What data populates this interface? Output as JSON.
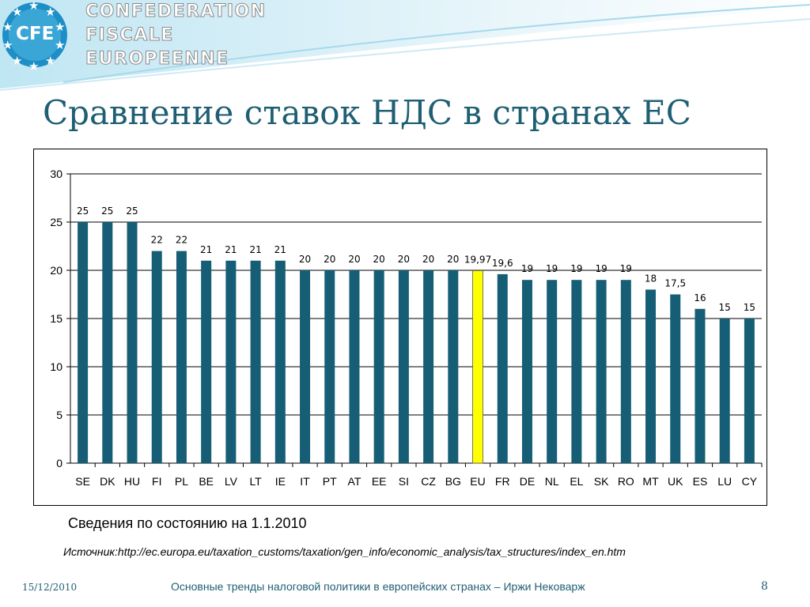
{
  "header": {
    "logo_text": "CFE",
    "org_line1": "CONFEDERATION",
    "org_line2": "FISCALE",
    "org_line3": "EUROPEENNE"
  },
  "slide_title": "Сравнение ставок НДС в странах ЕС",
  "note": "Сведения по состоянию на 1.1.2010",
  "source": "Источник:http://ec.europa.eu/taxation_customs/taxation/gen_info/economic_analysis/tax_structures/index_en.htm",
  "footer": {
    "date": "15/12/2010",
    "text": "Основные тренды налоговой политики в европейских странах – Иржи Нековарж",
    "page": "8"
  },
  "colors": {
    "bar": "#155e75",
    "highlight_bar": "#ffff00",
    "title": "#1f5f73",
    "logo_blue": "#1e8fc6"
  },
  "chart_data": {
    "type": "bar",
    "categories": [
      "SE",
      "DK",
      "HU",
      "FI",
      "PL",
      "BE",
      "LV",
      "LT",
      "IE",
      "IT",
      "PT",
      "AT",
      "EE",
      "SI",
      "CZ",
      "BG",
      "EU",
      "FR",
      "DE",
      "NL",
      "EL",
      "SK",
      "RO",
      "MT",
      "UK",
      "ES",
      "LU",
      "CY"
    ],
    "values": [
      25,
      25,
      25,
      22,
      22,
      21,
      21,
      21,
      21,
      20,
      20,
      20,
      20,
      20,
      20,
      20,
      19.97,
      19.6,
      19,
      19,
      19,
      19,
      19,
      18,
      17.5,
      16,
      15,
      15
    ],
    "data_labels": [
      "25",
      "25",
      "25",
      "22",
      "22",
      "21",
      "21",
      "21",
      "21",
      "20",
      "20",
      "20",
      "20",
      "20",
      "20",
      "20",
      "19,97",
      "19,6",
      "19",
      "19",
      "19",
      "19",
      "19",
      "18",
      "17,5",
      "16",
      "15",
      "15"
    ],
    "highlight_category": "EU",
    "ylim": [
      0,
      30
    ],
    "yticks": [
      0,
      5,
      10,
      15,
      20,
      25,
      30
    ],
    "grid": true,
    "legend": "none"
  }
}
